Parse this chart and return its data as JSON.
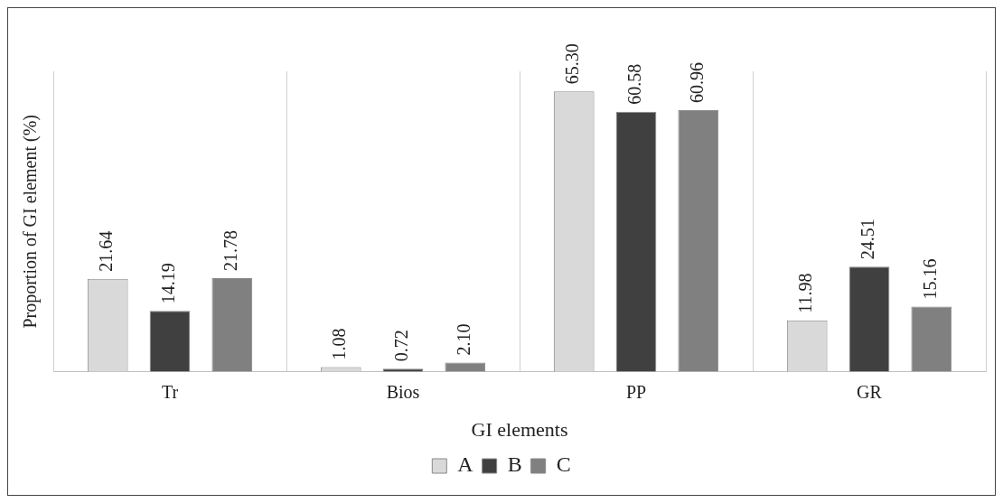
{
  "chart_data": {
    "type": "bar",
    "xlabel": "GI elements",
    "ylabel": "Proportion of GI element (%)",
    "categories": [
      "Tr",
      "Bios",
      "PP",
      "GR"
    ],
    "series": [
      {
        "name": "A",
        "color": "#d9d9d9",
        "values": [
          21.64,
          1.08,
          65.3,
          11.98
        ],
        "value_labels": [
          "21.64",
          "1.08",
          "65.30",
          "11.98"
        ]
      },
      {
        "name": "B",
        "color": "#404040",
        "values": [
          14.19,
          0.72,
          60.58,
          24.51
        ],
        "value_labels": [
          "14.19",
          "0.72",
          "60.58",
          "24.51"
        ]
      },
      {
        "name": "C",
        "color": "#808080",
        "values": [
          21.78,
          2.1,
          60.96,
          15.16
        ],
        "value_labels": [
          "21.78",
          "2.10",
          "60.96",
          "15.16"
        ]
      }
    ],
    "grid": "x",
    "legend": "bottom"
  }
}
